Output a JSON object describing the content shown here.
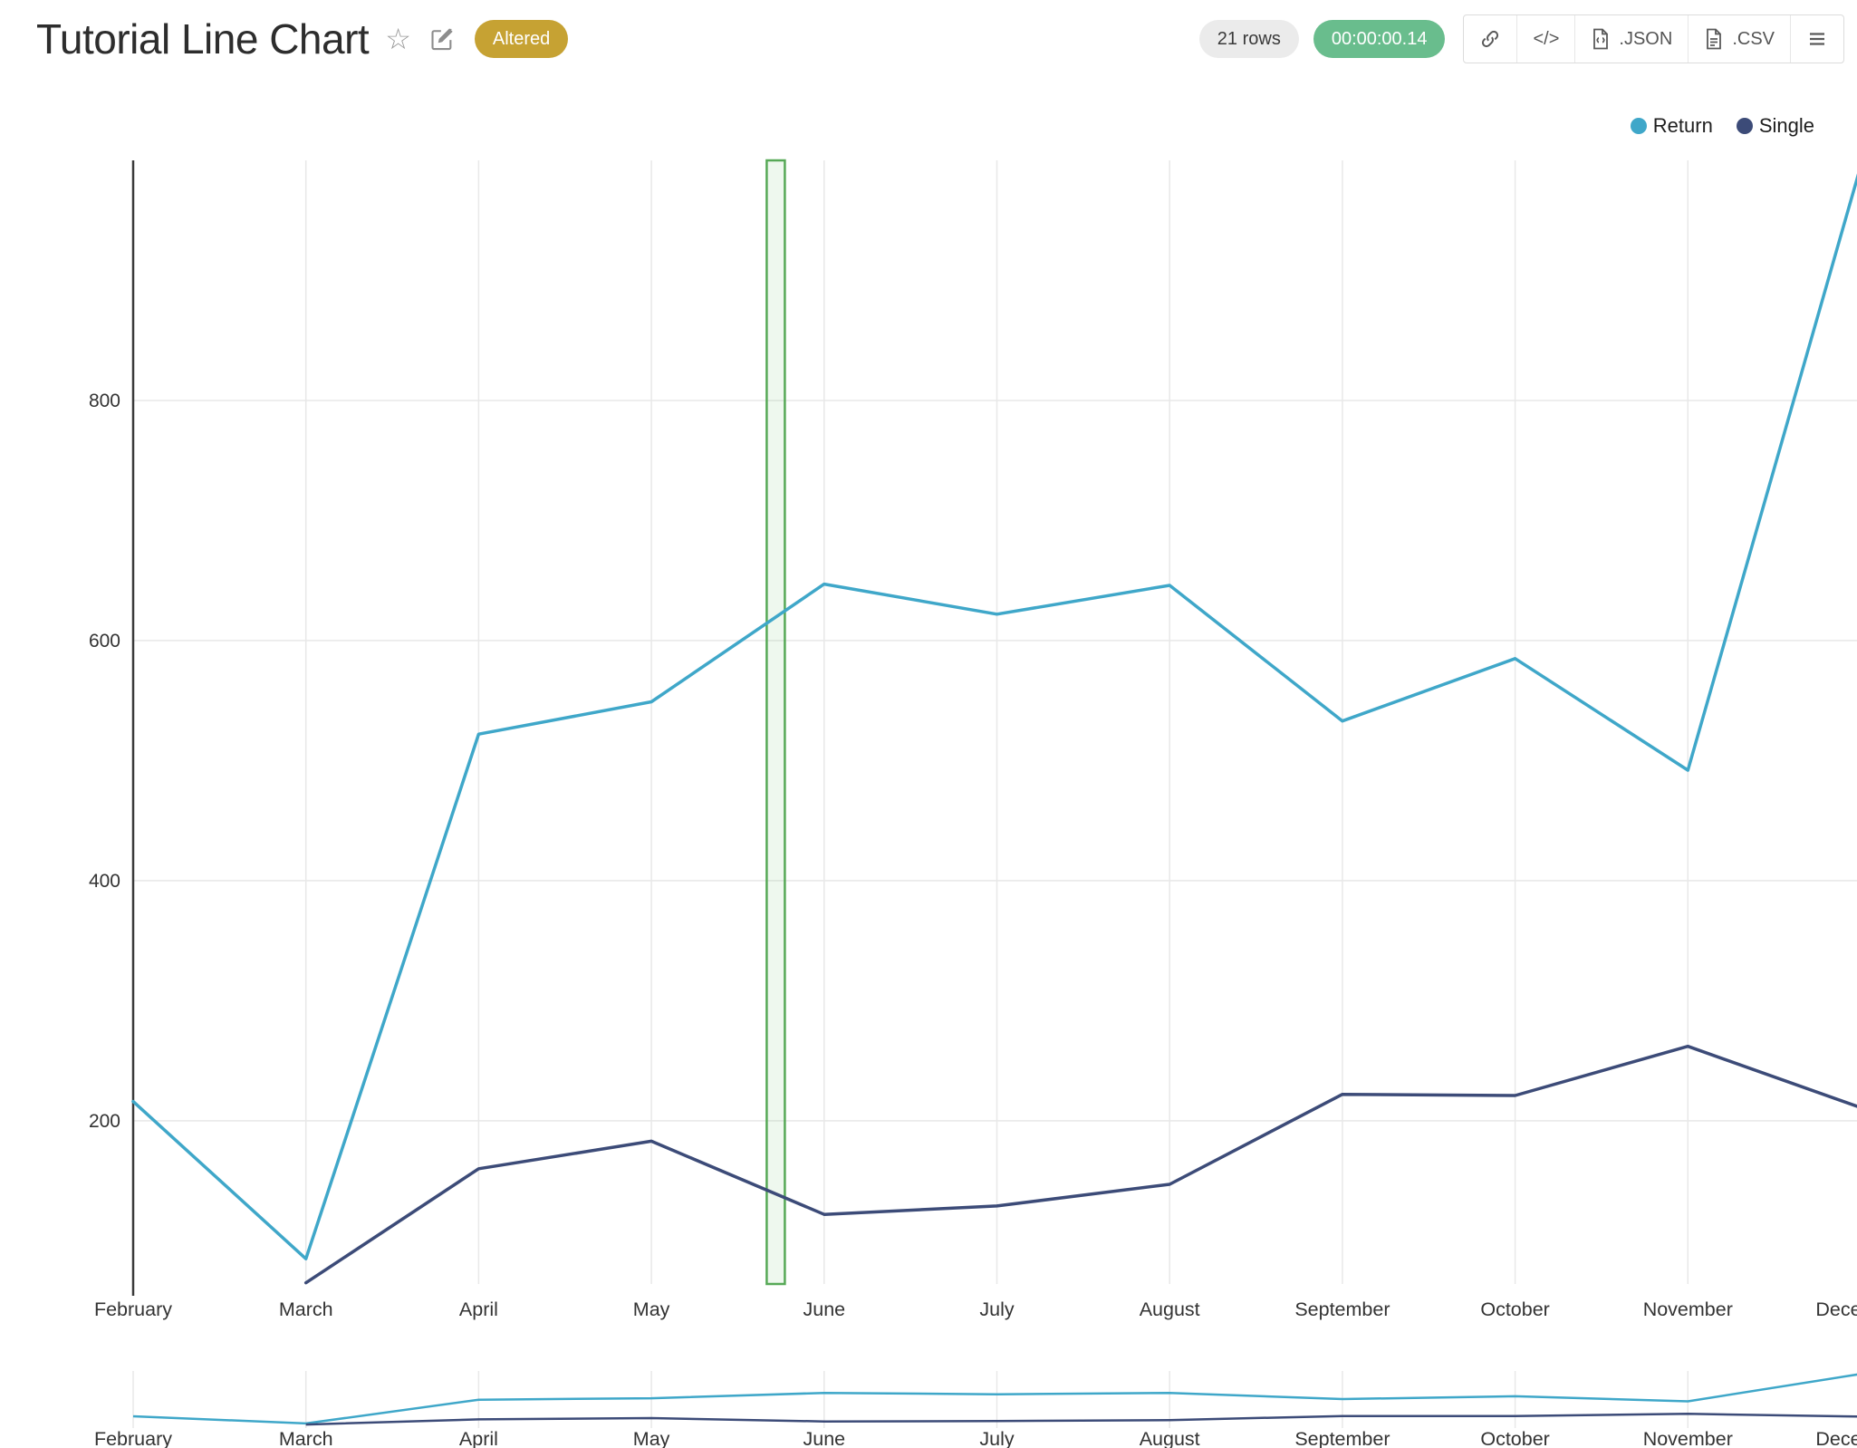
{
  "header": {
    "title": "Tutorial Line Chart",
    "status_badge": "Altered",
    "rows_badge": "21 rows",
    "duration": "00:00:00.14",
    "buttons": {
      "embed_glyph": "</>",
      "json_label": ".JSON",
      "csv_label": ".CSV"
    },
    "icons": [
      "favorite-star-icon",
      "edit-icon",
      "link-icon",
      "embed-code-icon",
      "json-file-icon",
      "csv-file-icon",
      "menu-icon"
    ]
  },
  "colors": {
    "accent_teal": "#3FA7C9",
    "accent_navy": "#3C4B78",
    "altered_bg": "#C6A233",
    "timer_bg": "#69BD8D",
    "rows_bg": "#EBEBEB",
    "grid": "#E8E8E8",
    "axis": "#3a3a3a",
    "band_stroke": "#57A957",
    "band_fill": "rgba(92,184,92,0.10)",
    "tick_text": "#333333"
  },
  "chart_data": {
    "type": "line",
    "title": "",
    "xlabel": "",
    "ylabel": "",
    "categories": [
      "February",
      "March",
      "April",
      "May",
      "June",
      "July",
      "August",
      "September",
      "October",
      "November",
      "December"
    ],
    "series": [
      {
        "name": "Return",
        "color": "#3FA7C9",
        "values": [
          216,
          85,
          522,
          549,
          647,
          622,
          646,
          533,
          585,
          492,
          995
        ]
      },
      {
        "name": "Single",
        "color": "#3C4B78",
        "values": [
          null,
          65,
          160,
          183,
          122,
          129,
          147,
          222,
          221,
          262,
          211
        ]
      }
    ],
    "yticks": [
      200,
      400,
      600,
      800
    ],
    "ylim": [
      64,
      1000
    ],
    "grid": true,
    "legend_position": "top-right",
    "highlight_band": {
      "between": [
        "May",
        "June"
      ],
      "fraction": 0.72
    },
    "range_selector": true
  }
}
